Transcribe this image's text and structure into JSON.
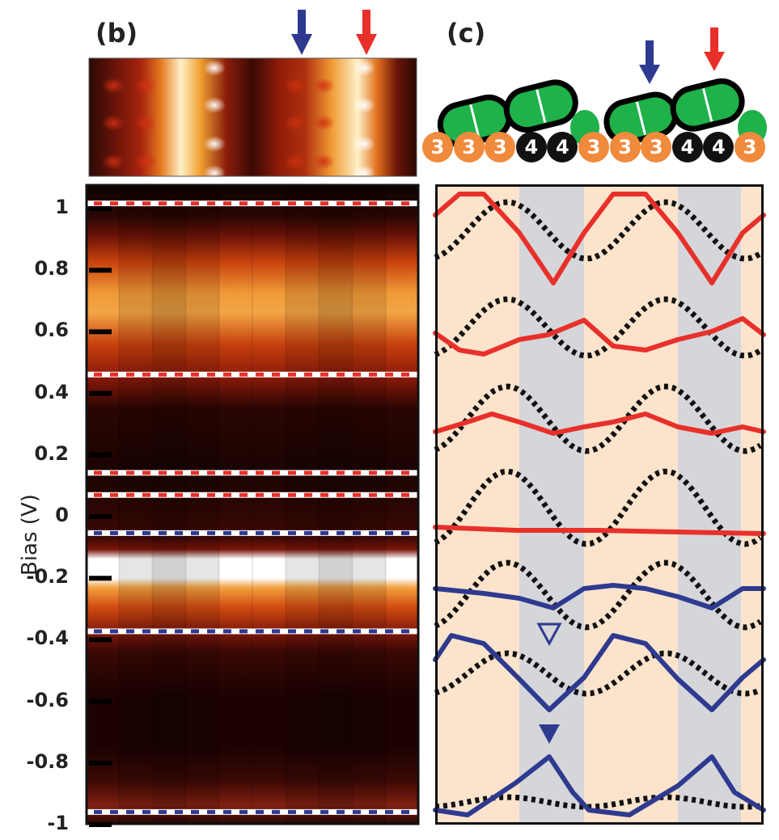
{
  "panels": {
    "b": {
      "label": "(b)"
    },
    "c": {
      "label": "(c)"
    }
  },
  "colors": {
    "accent_red": "#e8302a",
    "accent_blue": "#2e3a8f",
    "site_orange": "#f08a3c",
    "site_black": "#111111",
    "molecule_green": "#1fb14a",
    "band_peach": "#fce3cc",
    "band_grey": "#d5d6da"
  },
  "icons": [
    "blue-arrow-icon",
    "red-arrow-icon",
    "open-triangle-icon",
    "filled-triangle-icon"
  ],
  "y_axis": {
    "title": "Bias (V)",
    "ticks": [
      "1",
      "0.8",
      "0.6",
      "0.4",
      "0.2",
      "0",
      "-0.2",
      "-0.4",
      "-0.6",
      "-0.8",
      "-1"
    ]
  },
  "site_numbers": [
    "3",
    "3",
    "3",
    "4",
    "4",
    "3",
    "3",
    "3",
    "4",
    "4",
    "3"
  ],
  "chart_data": {
    "type": "heatmap",
    "ylabel": "Bias (V)",
    "ylim": [
      -1,
      1
    ],
    "dashed_levels": [
      {
        "bias": 0.95,
        "color": "red"
      },
      {
        "bias": 0.41,
        "color": "red"
      },
      {
        "bias": 0.1,
        "color": "red"
      },
      {
        "bias": 0.03,
        "color": "red"
      },
      {
        "bias": -0.09,
        "color": "blue"
      },
      {
        "bias": -0.4,
        "color": "blue"
      },
      {
        "bias": -0.97,
        "color": "blue"
      }
    ]
  }
}
